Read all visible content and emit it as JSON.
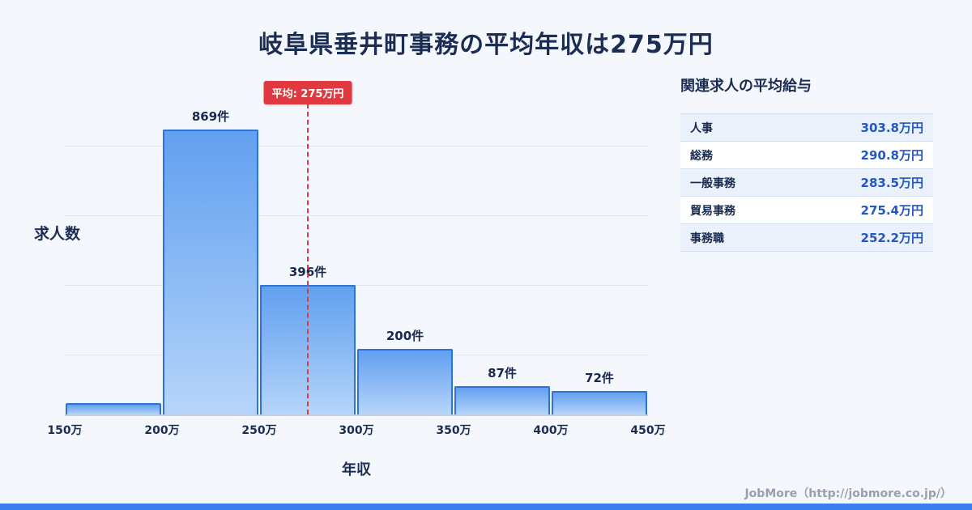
{
  "title": "岐阜県垂井町事務の平均年収は275万円",
  "chart_data": {
    "type": "bar",
    "title": "岐阜県垂井町事務の平均年収は275万円",
    "xlabel": "年収",
    "ylabel": "求人数",
    "x_tick_labels": [
      "150万",
      "200万",
      "250万",
      "300万",
      "350万",
      "400万",
      "450万"
    ],
    "x_range_man_yen": [
      150,
      450
    ],
    "ylim": [
      0,
      900
    ],
    "grid": "horizontal",
    "bars": [
      {
        "range_start": "150万",
        "range_end": "200万",
        "value": 35,
        "label": ""
      },
      {
        "range_start": "200万",
        "range_end": "250万",
        "value": 869,
        "label": "869件"
      },
      {
        "range_start": "250万",
        "range_end": "300万",
        "value": 396,
        "label": "396件"
      },
      {
        "range_start": "300万",
        "range_end": "350万",
        "value": 200,
        "label": "200件"
      },
      {
        "range_start": "350万",
        "range_end": "400万",
        "value": 87,
        "label": "87件"
      },
      {
        "range_start": "400万",
        "range_end": "450万",
        "value": 72,
        "label": "72件"
      }
    ],
    "average_line": {
      "value_man_yen": 275,
      "label": "平均: 275万円"
    }
  },
  "panel": {
    "title": "関連求人の平均給与",
    "rows": [
      {
        "job": "人事",
        "salary": "303.8万円"
      },
      {
        "job": "総務",
        "salary": "290.8万円"
      },
      {
        "job": "一般事務",
        "salary": "283.5万円"
      },
      {
        "job": "貿易事務",
        "salary": "275.4万円"
      },
      {
        "job": "事務職",
        "salary": "252.2万円"
      }
    ]
  },
  "footer": {
    "credit": "JobMore（http://jobmore.co.jp/）"
  },
  "colors": {
    "background": "#f4f7fb",
    "title_navy": "#1b2d52",
    "bar_border": "#2e73d8",
    "bar_gradient_top": "#62a0f0",
    "bar_gradient_bottom": "#b7d5fa",
    "average_red": "#e03a40",
    "value_blue": "#2456c4",
    "bottom_bar_blue": "#3b7ef0"
  }
}
